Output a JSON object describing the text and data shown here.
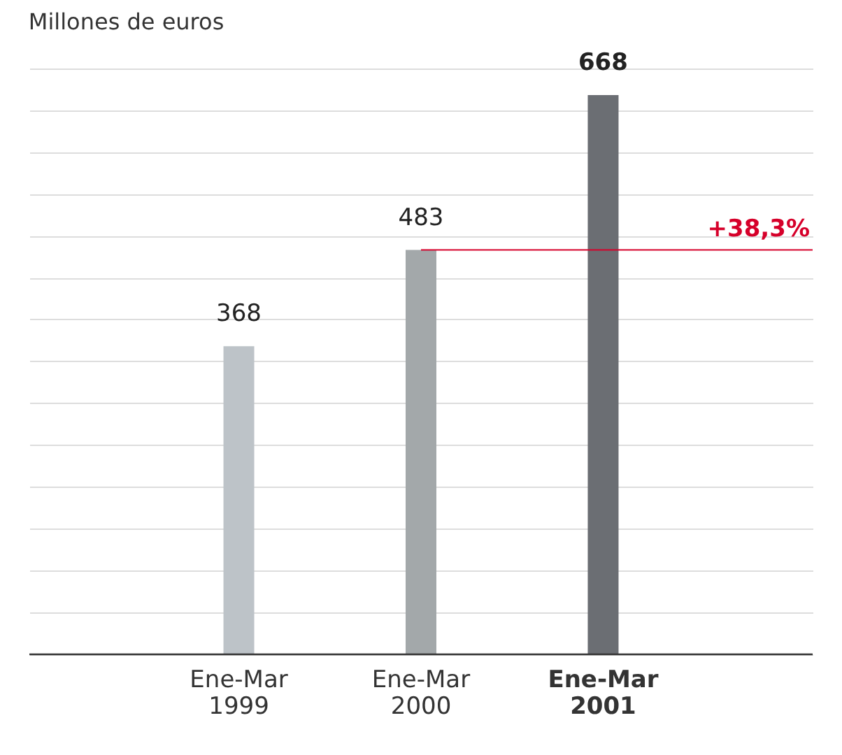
{
  "chart_data": {
    "type": "bar",
    "title": "Millones de euros",
    "categories": [
      "Ene-Mar 1999",
      "Ene-Mar 2000",
      "Ene-Mar 2001"
    ],
    "values": [
      368,
      483,
      668
    ],
    "colors": [
      "#bdc3c8",
      "#a3a8aa",
      "#6b6e73"
    ],
    "data_labels": true,
    "grid": "y",
    "ref_lines": [
      {
        "axis": "y",
        "value": 483,
        "color": "#d6002a"
      }
    ],
    "annotations": [
      "+38,3%"
    ]
  }
}
